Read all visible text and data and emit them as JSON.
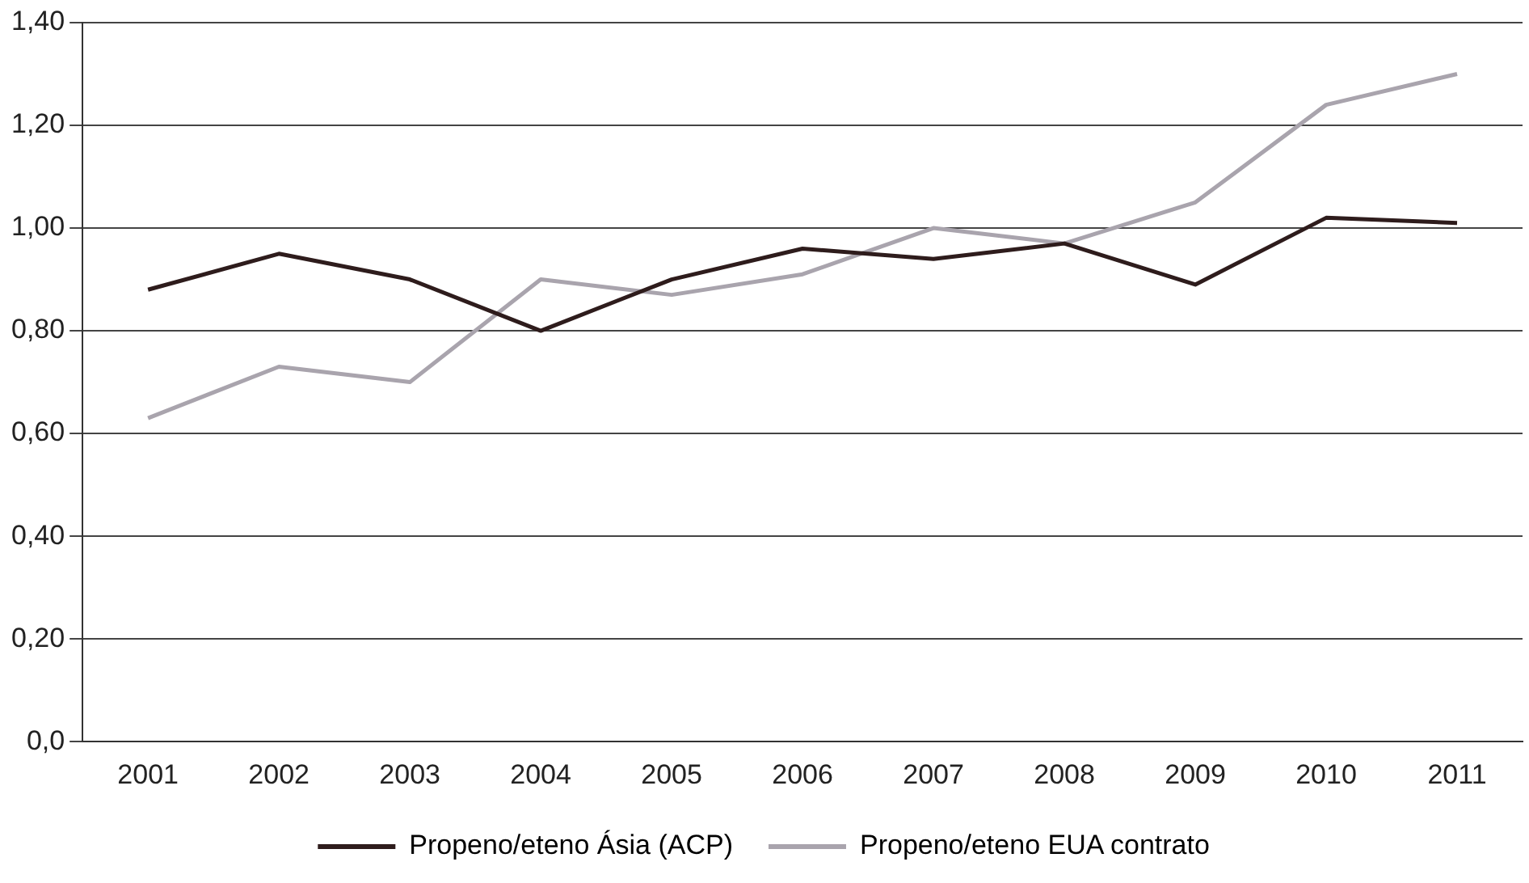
{
  "chart_data": {
    "type": "line",
    "categories": [
      "2001",
      "2002",
      "2003",
      "2004",
      "2005",
      "2006",
      "2007",
      "2008",
      "2009",
      "2010",
      "2011"
    ],
    "series": [
      {
        "name": "Propeno/eteno Ásia (ACP)",
        "color": "#2e1c1c",
        "values": [
          0.88,
          0.95,
          0.9,
          0.8,
          0.9,
          0.96,
          0.94,
          0.97,
          0.89,
          1.02,
          1.01
        ]
      },
      {
        "name": "Propeno/eteno EUA contrato",
        "color": "#a9a4ad",
        "values": [
          0.63,
          0.73,
          0.7,
          0.9,
          0.87,
          0.91,
          1.0,
          0.97,
          1.05,
          1.24,
          1.3
        ]
      }
    ],
    "ylim": [
      0,
      1.4
    ],
    "yticks": [
      {
        "value": 0,
        "label": "0,0"
      },
      {
        "value": 0.2,
        "label": "0,20"
      },
      {
        "value": 0.4,
        "label": "0,40"
      },
      {
        "value": 0.6,
        "label": "0,60"
      },
      {
        "value": 0.8,
        "label": "0,80"
      },
      {
        "value": 1.0,
        "label": "1,00"
      },
      {
        "value": 1.2,
        "label": "1,20"
      },
      {
        "value": 1.4,
        "label": "1,40"
      }
    ],
    "grid": "y",
    "legend": "bottom",
    "marker": "none",
    "line_style": "solid"
  }
}
